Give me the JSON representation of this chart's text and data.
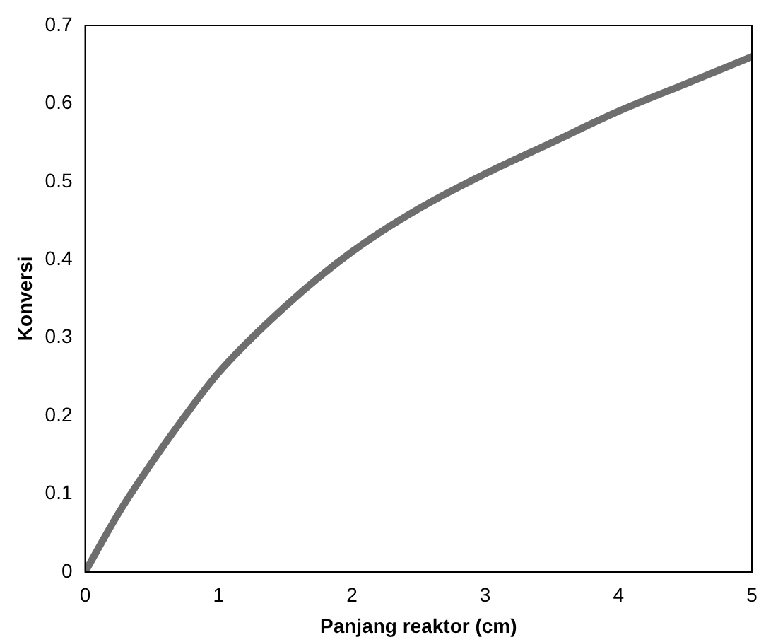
{
  "chart_data": {
    "type": "line",
    "xlabel": "Panjang reaktor (cm)",
    "ylabel": "Konversi",
    "x": [
      0,
      0.25,
      0.5,
      0.75,
      1,
      1.5,
      2,
      2.5,
      3,
      3.5,
      4,
      4.5,
      5
    ],
    "series": [
      {
        "color": "#6e6e6e",
        "values": [
          0,
          0.075,
          0.14,
          0.2,
          0.255,
          0.34,
          0.41,
          0.465,
          0.51,
          0.55,
          0.59,
          0.625,
          0.66
        ]
      }
    ],
    "xlim": [
      0,
      5
    ],
    "xticks": [
      0,
      1,
      2,
      3,
      4,
      5
    ],
    "ylim": [
      0,
      0.7
    ],
    "yticks": [
      0,
      0.1,
      0.2,
      0.3,
      0.4,
      0.5,
      0.6,
      0.7
    ],
    "grid": false,
    "legend": false,
    "marker": "none",
    "line_style": "solid"
  }
}
